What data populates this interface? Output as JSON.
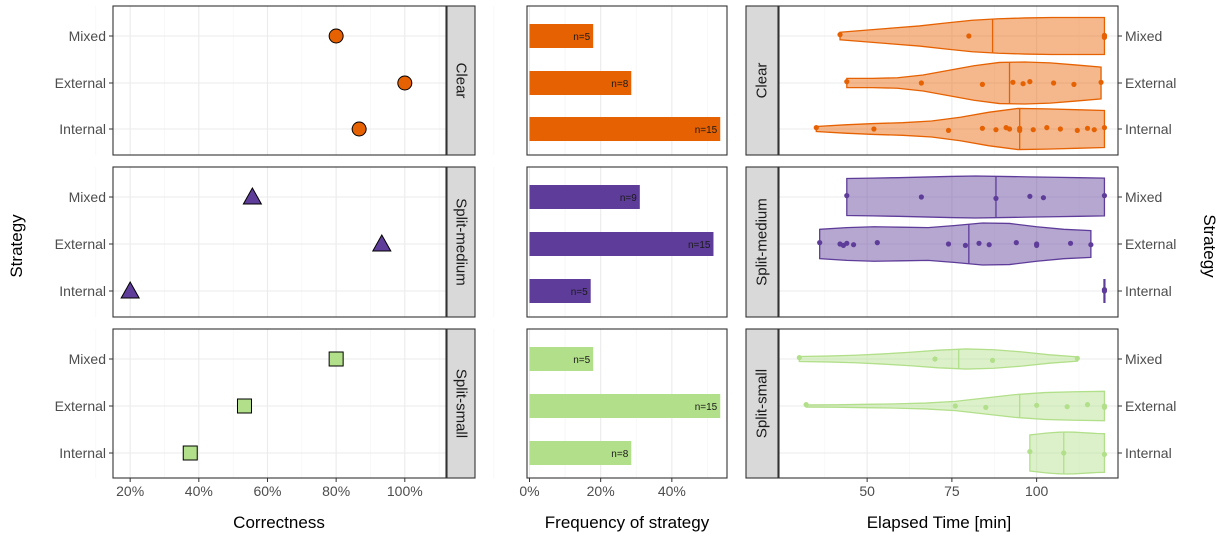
{
  "colors": {
    "Clear": "#e66101",
    "Split-medium": "#5e3c99",
    "Split-small": "#b2df8a",
    "strip": "#d9d9d9"
  },
  "chart_data": [
    {
      "id": "correctness",
      "type": "scatter",
      "xlabel": "Correctness",
      "ylabel": "Strategy",
      "xlim": [
        0.15,
        1.12
      ],
      "x_ticks": [
        0.2,
        0.4,
        0.6,
        0.8,
        1.0
      ],
      "x_tick_labels": [
        "20%",
        "40%",
        "60%",
        "80%",
        "100%"
      ],
      "categories": [
        "Mixed",
        "External",
        "Internal"
      ],
      "facets": [
        {
          "name": "Clear",
          "shape": "circle",
          "points": [
            {
              "strategy": "Mixed",
              "x": 0.8
            },
            {
              "strategy": "External",
              "x": 1.0
            },
            {
              "strategy": "Internal",
              "x": 0.867
            }
          ]
        },
        {
          "name": "Split-medium",
          "shape": "triangle",
          "points": [
            {
              "strategy": "Mixed",
              "x": 0.556
            },
            {
              "strategy": "External",
              "x": 0.933
            },
            {
              "strategy": "Internal",
              "x": 0.2
            }
          ]
        },
        {
          "name": "Split-small",
          "shape": "square",
          "points": [
            {
              "strategy": "Mixed",
              "x": 0.8
            },
            {
              "strategy": "External",
              "x": 0.533
            },
            {
              "strategy": "Internal",
              "x": 0.375
            }
          ]
        }
      ]
    },
    {
      "id": "frequency",
      "type": "bar",
      "xlabel": "Frequency of strategy",
      "xlim": [
        -0.007,
        0.555
      ],
      "x_ticks": [
        0.0,
        0.2,
        0.4
      ],
      "x_tick_labels": [
        "0%",
        "20%",
        "40%"
      ],
      "categories": [
        "Mixed",
        "External",
        "Internal"
      ],
      "facets": [
        {
          "name": "Clear",
          "bars": [
            {
              "strategy": "Mixed",
              "value": 0.179,
              "label": "n=5"
            },
            {
              "strategy": "External",
              "value": 0.286,
              "label": "n=8"
            },
            {
              "strategy": "Internal",
              "value": 0.536,
              "label": "n=15"
            }
          ]
        },
        {
          "name": "Split-medium",
          "bars": [
            {
              "strategy": "Mixed",
              "value": 0.31,
              "label": "n=9"
            },
            {
              "strategy": "External",
              "value": 0.517,
              "label": "n=15"
            },
            {
              "strategy": "Internal",
              "value": 0.172,
              "label": "n=5"
            }
          ]
        },
        {
          "name": "Split-small",
          "bars": [
            {
              "strategy": "Mixed",
              "value": 0.179,
              "label": "n=5"
            },
            {
              "strategy": "External",
              "value": 0.536,
              "label": "n=15"
            },
            {
              "strategy": "Internal",
              "value": 0.286,
              "label": "n=8"
            }
          ]
        }
      ]
    },
    {
      "id": "elapsed",
      "type": "violin",
      "xlabel": "Elapsed Time [min]",
      "ylabel": "Strategy",
      "xlim": [
        24,
        124
      ],
      "x_ticks": [
        50,
        75,
        100
      ],
      "x_tick_labels": [
        "50",
        "75",
        "100"
      ],
      "categories": [
        "Mixed",
        "External",
        "Internal"
      ],
      "facets": [
        {
          "name": "Clear",
          "violins": [
            {
              "strategy": "Mixed",
              "min": 42,
              "max": 120,
              "median": 87,
              "density": [
                0.18,
                0.28,
                0.38,
                0.48,
                0.62,
                0.75,
                0.82,
                0.86,
                0.88,
                0.88,
                0.88
              ],
              "points": [
                42,
                80,
                120,
                120,
                120
              ]
            },
            {
              "strategy": "External",
              "min": 44,
              "max": 119,
              "median": 92,
              "density": [
                0.22,
                0.22,
                0.25,
                0.38,
                0.6,
                0.82,
                0.98,
                1.0,
                0.96,
                0.86,
                0.76
              ],
              "points": [
                44,
                66,
                84,
                93,
                96,
                98,
                105,
                111,
                119
              ]
            },
            {
              "strategy": "Internal",
              "min": 35,
              "max": 120,
              "median": 95,
              "density": [
                0.12,
                0.2,
                0.26,
                0.3,
                0.38,
                0.56,
                0.8,
                0.98,
                0.96,
                0.92,
                0.88
              ],
              "points": [
                35,
                52,
                74,
                84,
                88,
                91,
                92,
                95,
                95,
                99,
                103,
                107,
                112,
                115,
                117,
                120
              ]
            }
          ]
        },
        {
          "name": "Split-medium",
          "violins": [
            {
              "strategy": "Mixed",
              "min": 44,
              "max": 120,
              "median": 88,
              "density": [
                0.88,
                0.9,
                0.92,
                0.95,
                0.98,
                1.0,
                0.98,
                0.96,
                0.94,
                0.92,
                0.9
              ],
              "points": [
                44,
                66,
                88,
                98,
                102,
                120
              ]
            },
            {
              "strategy": "External",
              "min": 36,
              "max": 116,
              "median": 80,
              "density": [
                0.7,
                0.78,
                0.82,
                0.8,
                0.78,
                0.88,
                1.0,
                0.98,
                0.82,
                0.7,
                0.64
              ],
              "points": [
                36,
                42,
                43,
                44,
                46,
                53,
                74,
                79,
                83,
                86,
                94,
                100,
                100,
                110,
                116
              ]
            },
            {
              "strategy": "Internal",
              "min": 120,
              "max": 120,
              "median": 120,
              "density": [],
              "points": [
                120,
                120
              ]
            }
          ]
        },
        {
          "name": "Split-small",
          "violins": [
            {
              "strategy": "Mixed",
              "min": 30,
              "max": 112,
              "median": 77,
              "density": [
                0.12,
                0.14,
                0.18,
                0.24,
                0.32,
                0.42,
                0.48,
                0.44,
                0.34,
                0.2,
                0.1
              ],
              "points": [
                30,
                70,
                87,
                112
              ]
            },
            {
              "strategy": "External",
              "min": 32,
              "max": 120,
              "median": 95,
              "density": [
                0.05,
                0.06,
                0.08,
                0.1,
                0.14,
                0.22,
                0.38,
                0.54,
                0.64,
                0.68,
                0.7
              ],
              "points": [
                32,
                76,
                85,
                100,
                109,
                115,
                120,
                120
              ]
            },
            {
              "strategy": "Internal",
              "min": 98,
              "max": 120,
              "median": 108,
              "density": [
                0.86,
                0.9,
                0.94,
                0.97,
                0.99,
                1.0,
                0.99,
                0.97,
                0.95,
                0.93,
                0.92
              ],
              "points": [
                98,
                108,
                120
              ]
            }
          ]
        }
      ]
    }
  ]
}
